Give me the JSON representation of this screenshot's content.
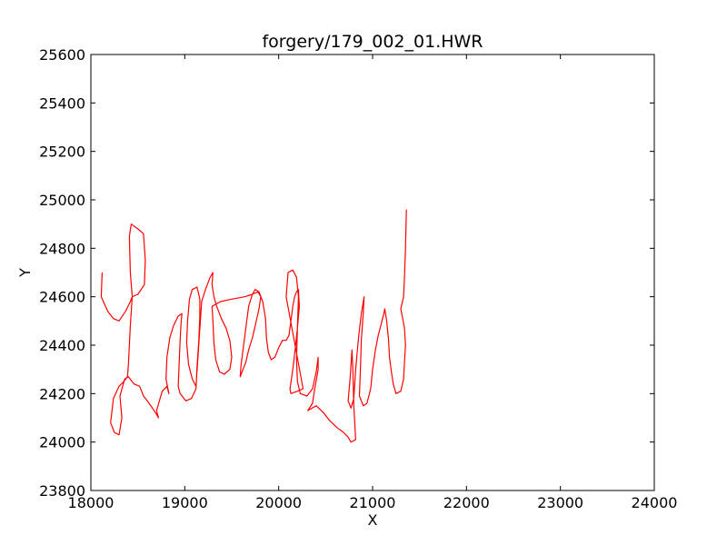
{
  "chart_data": {
    "type": "line",
    "title": "forgery/179_002_01.HWR",
    "xlabel": "X",
    "ylabel": "Y",
    "xlim": [
      18000,
      24000
    ],
    "ylim": [
      23800,
      25600
    ],
    "xticks": [
      18000,
      19000,
      20000,
      21000,
      22000,
      23000,
      24000
    ],
    "yticks": [
      23800,
      24000,
      24200,
      24400,
      24600,
      24800,
      25000,
      25200,
      25400,
      25600
    ],
    "xtick_labels": [
      "18000",
      "19000",
      "20000",
      "21000",
      "22000",
      "23000",
      "24000"
    ],
    "ytick_labels": [
      "23800",
      "24000",
      "24200",
      "24400",
      "24600",
      "24800",
      "25000",
      "25200",
      "25400",
      "25600"
    ],
    "grid": false,
    "line_color": "#ff0000",
    "series": [
      {
        "points": [
          [
            18120,
            24700
          ],
          [
            18110,
            24600
          ],
          [
            18180,
            24540
          ],
          [
            18240,
            24510
          ],
          [
            18300,
            24500
          ],
          [
            18370,
            24540
          ],
          [
            18420,
            24580
          ],
          [
            18440,
            24600
          ],
          [
            18420,
            24700
          ],
          [
            18410,
            24850
          ],
          [
            18430,
            24900
          ],
          [
            18500,
            24880
          ],
          [
            18560,
            24860
          ],
          [
            18580,
            24750
          ],
          [
            18570,
            24650
          ],
          [
            18500,
            24610
          ],
          [
            18440,
            24600
          ],
          [
            18420,
            24480
          ],
          [
            18400,
            24320
          ],
          [
            18390,
            24270
          ],
          [
            18350,
            24250
          ],
          [
            18300,
            24230
          ],
          [
            18240,
            24180
          ],
          [
            18210,
            24080
          ],
          [
            18250,
            24040
          ],
          [
            18300,
            24030
          ],
          [
            18330,
            24100
          ],
          [
            18310,
            24190
          ],
          [
            18360,
            24260
          ],
          [
            18400,
            24270
          ],
          [
            18460,
            24240
          ],
          [
            18520,
            24230
          ],
          [
            18560,
            24190
          ],
          [
            18620,
            24160
          ],
          [
            18690,
            24120
          ],
          [
            18720,
            24100
          ],
          [
            18700,
            24130
          ],
          [
            18760,
            24210
          ],
          [
            18810,
            24230
          ],
          [
            18830,
            24200
          ],
          [
            18800,
            24260
          ],
          [
            18810,
            24350
          ],
          [
            18840,
            24430
          ],
          [
            18880,
            24480
          ],
          [
            18930,
            24520
          ],
          [
            18970,
            24530
          ],
          [
            18960,
            24490
          ],
          [
            18950,
            24420
          ],
          [
            18940,
            24320
          ],
          [
            18930,
            24230
          ],
          [
            18950,
            24200
          ],
          [
            19010,
            24170
          ],
          [
            19070,
            24180
          ],
          [
            19120,
            24220
          ],
          [
            19130,
            24310
          ],
          [
            19150,
            24420
          ],
          [
            19160,
            24520
          ],
          [
            19160,
            24590
          ],
          [
            19130,
            24640
          ],
          [
            19080,
            24630
          ],
          [
            19050,
            24590
          ],
          [
            19030,
            24500
          ],
          [
            19020,
            24410
          ],
          [
            19040,
            24320
          ],
          [
            19080,
            24260
          ],
          [
            19120,
            24230
          ],
          [
            19180,
            24580
          ],
          [
            19220,
            24630
          ],
          [
            19270,
            24680
          ],
          [
            19300,
            24700
          ],
          [
            19290,
            24650
          ],
          [
            19310,
            24600
          ],
          [
            19340,
            24560
          ],
          [
            19390,
            24510
          ],
          [
            19440,
            24470
          ],
          [
            19480,
            24420
          ],
          [
            19500,
            24350
          ],
          [
            19480,
            24300
          ],
          [
            19420,
            24280
          ],
          [
            19370,
            24290
          ],
          [
            19330,
            24340
          ],
          [
            19310,
            24410
          ],
          [
            19300,
            24500
          ],
          [
            19290,
            24560
          ],
          [
            19380,
            24580
          ],
          [
            19500,
            24590
          ],
          [
            19640,
            24600
          ],
          [
            19720,
            24610
          ],
          [
            19780,
            24620
          ],
          [
            19810,
            24600
          ],
          [
            19790,
            24550
          ],
          [
            19750,
            24480
          ],
          [
            19720,
            24430
          ],
          [
            19680,
            24380
          ],
          [
            19650,
            24330
          ],
          [
            19610,
            24290
          ],
          [
            19590,
            24270
          ],
          [
            19600,
            24320
          ],
          [
            19620,
            24380
          ],
          [
            19640,
            24440
          ],
          [
            19660,
            24500
          ],
          [
            19680,
            24560
          ],
          [
            19720,
            24610
          ],
          [
            19750,
            24630
          ],
          [
            19790,
            24620
          ],
          [
            19830,
            24580
          ],
          [
            19860,
            24510
          ],
          [
            19870,
            24430
          ],
          [
            19890,
            24370
          ],
          [
            19920,
            24340
          ],
          [
            19960,
            24350
          ],
          [
            20000,
            24390
          ],
          [
            20040,
            24420
          ],
          [
            20080,
            24420
          ],
          [
            20110,
            24440
          ],
          [
            20130,
            24500
          ],
          [
            20150,
            24560
          ],
          [
            20170,
            24600
          ],
          [
            20190,
            24620
          ],
          [
            20210,
            24630
          ],
          [
            20220,
            24560
          ],
          [
            20200,
            24470
          ],
          [
            20180,
            24400
          ],
          [
            20160,
            24330
          ],
          [
            20140,
            24270
          ],
          [
            20120,
            24220
          ],
          [
            20130,
            24200
          ],
          [
            20200,
            24210
          ],
          [
            20260,
            24220
          ],
          [
            20080,
            24600
          ],
          [
            20100,
            24700
          ],
          [
            20150,
            24710
          ],
          [
            20190,
            24680
          ],
          [
            20210,
            24600
          ],
          [
            20200,
            24470
          ],
          [
            20190,
            24340
          ],
          [
            20200,
            24250
          ],
          [
            20230,
            24200
          ],
          [
            20300,
            24190
          ],
          [
            20360,
            24220
          ],
          [
            20400,
            24290
          ],
          [
            20420,
            24350
          ],
          [
            20420,
            24300
          ],
          [
            20380,
            24210
          ],
          [
            20360,
            24160
          ],
          [
            20310,
            24130
          ],
          [
            20400,
            24150
          ],
          [
            20480,
            24120
          ],
          [
            20540,
            24090
          ],
          [
            20620,
            24060
          ],
          [
            20690,
            24040
          ],
          [
            20740,
            24020
          ],
          [
            20770,
            24000
          ],
          [
            20820,
            24010
          ],
          [
            20800,
            24150
          ],
          [
            20790,
            24300
          ],
          [
            20780,
            24380
          ],
          [
            20760,
            24260
          ],
          [
            20740,
            24170
          ],
          [
            20770,
            24140
          ],
          [
            20800,
            24180
          ],
          [
            20820,
            24300
          ],
          [
            20850,
            24430
          ],
          [
            20880,
            24530
          ],
          [
            20910,
            24600
          ],
          [
            20900,
            24530
          ],
          [
            20880,
            24420
          ],
          [
            20870,
            24300
          ],
          [
            20860,
            24190
          ],
          [
            20900,
            24150
          ],
          [
            20940,
            24160
          ],
          [
            20980,
            24220
          ],
          [
            21000,
            24300
          ],
          [
            21030,
            24380
          ],
          [
            21060,
            24440
          ],
          [
            21080,
            24470
          ],
          [
            21100,
            24500
          ],
          [
            21120,
            24530
          ],
          [
            21130,
            24550
          ],
          [
            21150,
            24500
          ],
          [
            21170,
            24420
          ],
          [
            21180,
            24350
          ],
          [
            21200,
            24290
          ],
          [
            21220,
            24240
          ],
          [
            21250,
            24200
          ],
          [
            21300,
            24210
          ],
          [
            21330,
            24260
          ],
          [
            21340,
            24330
          ],
          [
            21350,
            24400
          ],
          [
            21340,
            24470
          ],
          [
            21320,
            24510
          ],
          [
            21300,
            24550
          ],
          [
            21330,
            24600
          ],
          [
            21340,
            24680
          ],
          [
            21350,
            24800
          ],
          [
            21360,
            24960
          ]
        ]
      }
    ]
  }
}
